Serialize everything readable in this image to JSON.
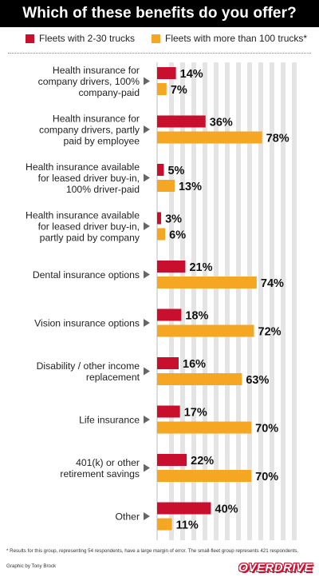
{
  "header": {
    "title": "Which of these benefits do you offer?"
  },
  "legend": {
    "small": {
      "label": "Fleets with 2-30 trucks",
      "color": "#c8102e"
    },
    "large": {
      "label": "Fleets with more than 100 trucks*",
      "color": "#f5a623"
    }
  },
  "chart_data": {
    "type": "bar",
    "orientation": "horizontal",
    "title": "Which of these benefits do you offer?",
    "xlim": [
      0,
      80
    ],
    "categories": [
      [
        "Health insurance for",
        "company drivers, 100%",
        "company-paid"
      ],
      [
        "Health insurance for",
        "company drivers, partly",
        "paid by employee"
      ],
      [
        "Health insurance available",
        "for leased driver buy-in,",
        "100% driver-paid"
      ],
      [
        "Health insurance available",
        "for leased driver buy-in,",
        "partly paid by company"
      ],
      [
        "Dental insurance options"
      ],
      [
        "Vision insurance options"
      ],
      [
        "Disability / other income",
        "replacement"
      ],
      [
        "Life insurance"
      ],
      [
        "401(k) or other",
        "retirement savings"
      ],
      [
        "Other"
      ]
    ],
    "series": [
      {
        "name": "Fleets with 2-30 trucks",
        "color": "#c8102e",
        "values": [
          14,
          36,
          5,
          3,
          21,
          18,
          16,
          17,
          22,
          40
        ]
      },
      {
        "name": "Fleets with more than 100 trucks*",
        "color": "#f5a623",
        "values": [
          7,
          78,
          13,
          6,
          74,
          72,
          63,
          70,
          70,
          11
        ]
      }
    ],
    "value_suffix": "%"
  },
  "footer": {
    "note": "* Results for this group, representing 54 respondents, have a large margin of error. The small-fleet group represents 421 respondents.",
    "credit": "Graphic by Tony Brock",
    "logo": "OVERDRIVE"
  }
}
